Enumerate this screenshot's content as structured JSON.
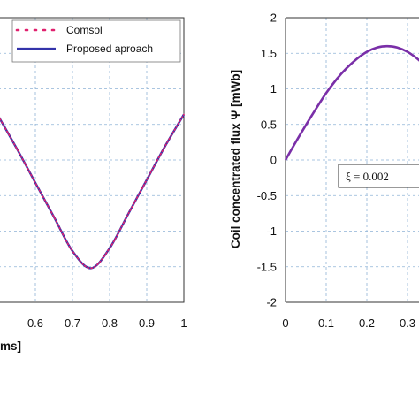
{
  "chart_data": [
    {
      "type": "line",
      "x": [
        0.5,
        0.55,
        0.6,
        0.65,
        0.7,
        0.75,
        0.8,
        0.85,
        0.9,
        0.95,
        1.0
      ],
      "xlim": [
        0.5,
        1.0
      ],
      "xticks": [
        "0.6",
        "0.7",
        "0.8",
        "0.9",
        "1"
      ],
      "xlabel": "ms]",
      "series": [
        {
          "name": "Comsol",
          "color": "#e0206e",
          "style": "dotted",
          "values": [
            0.31,
            0.08,
            -0.16,
            -0.4,
            -0.64,
            -0.76,
            -0.62,
            -0.38,
            -0.14,
            0.1,
            0.32
          ]
        },
        {
          "name": "Proposed aproach",
          "color": "#3333aa",
          "style": "solid",
          "values": [
            0.31,
            0.08,
            -0.16,
            -0.4,
            -0.64,
            -0.76,
            -0.62,
            -0.38,
            -0.14,
            0.1,
            0.32
          ]
        }
      ],
      "ylim": [
        -1.0,
        1.0
      ],
      "grid": true,
      "legend": "top-right"
    },
    {
      "type": "line",
      "x": [
        0,
        0.025,
        0.05,
        0.075,
        0.1,
        0.125,
        0.15,
        0.175,
        0.2,
        0.225,
        0.25,
        0.275,
        0.3,
        0.325,
        0.35
      ],
      "xlim": [
        0,
        0.35
      ],
      "xticks": [
        "0",
        "0.1",
        "0.2",
        "0.3"
      ],
      "ylim": [
        -2,
        2
      ],
      "yticks": [
        "2",
        "1.5",
        "1",
        "0.5",
        "0",
        "-0.5",
        "-1",
        "-1.5",
        "-2"
      ],
      "ylabel": "Coil concentrated flux   Ψ   [mWb]",
      "series": [
        {
          "name": "Proposed aproach",
          "color": "#7a2fa8",
          "style": "solid",
          "values": [
            0,
            0.25,
            0.49,
            0.72,
            0.94,
            1.13,
            1.29,
            1.42,
            1.52,
            1.58,
            1.6,
            1.58,
            1.52,
            1.42,
            1.29
          ]
        }
      ],
      "annotation": "ξ = 0.002",
      "grid": true
    }
  ]
}
